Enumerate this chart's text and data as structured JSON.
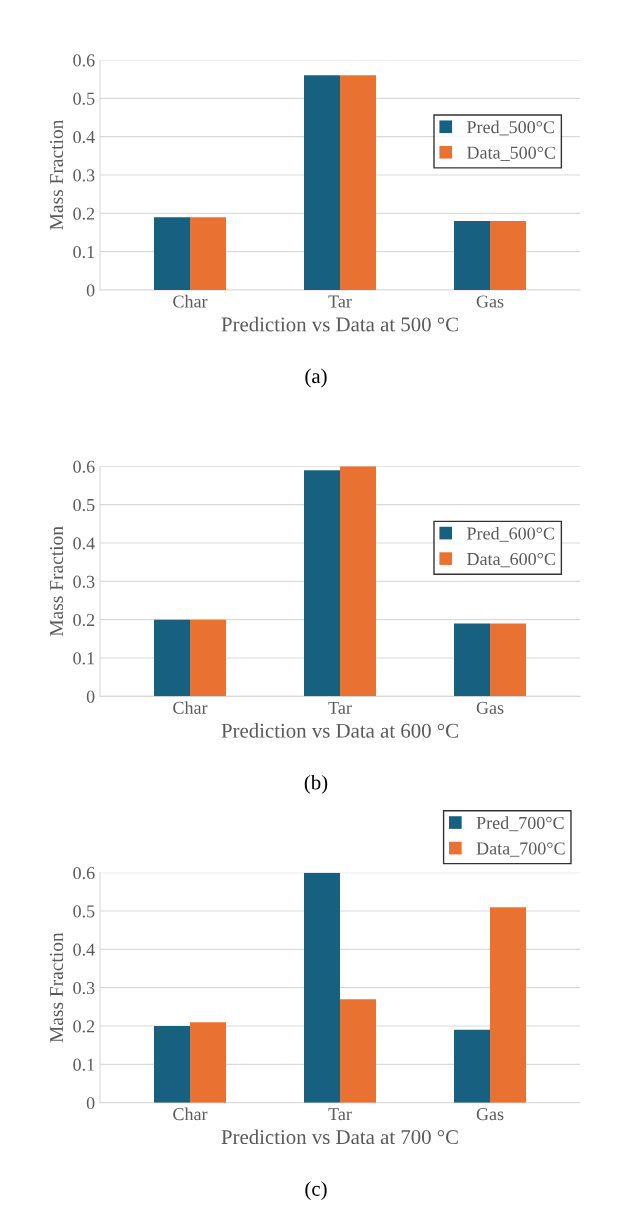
{
  "chart_data": [
    {
      "type": "bar",
      "xlabel": "Prediction vs Data at 500 °C",
      "ylabel": "Mass Fraction",
      "categories": [
        "Char",
        "Tar",
        "Gas"
      ],
      "series": [
        {
          "name": "Pred_500°C",
          "color": "#17607f",
          "values": [
            0.19,
            0.56,
            0.18
          ]
        },
        {
          "name": "Data_500°C",
          "color": "#e97132",
          "values": [
            0.19,
            0.56,
            0.18
          ]
        }
      ],
      "ylim": [
        0,
        0.6
      ],
      "yticks": [
        0,
        0.1,
        0.2,
        0.3,
        0.4,
        0.5,
        0.6
      ],
      "grid": "y",
      "legend": "right",
      "annotations": [
        "(a)"
      ]
    },
    {
      "type": "bar",
      "xlabel": "Prediction vs Data at 600 °C",
      "ylabel": "Mass Fraction",
      "categories": [
        "Char",
        "Tar",
        "Gas"
      ],
      "series": [
        {
          "name": "Pred_600°C",
          "color": "#17607f",
          "values": [
            0.2,
            0.59,
            0.19
          ]
        },
        {
          "name": "Data_600°C",
          "color": "#e97132",
          "values": [
            0.2,
            0.6,
            0.19
          ]
        }
      ],
      "ylim": [
        0,
        0.6
      ],
      "yticks": [
        0,
        0.1,
        0.2,
        0.3,
        0.4,
        0.5,
        0.6
      ],
      "grid": "y",
      "legend": "right",
      "annotations": [
        "(b)"
      ]
    },
    {
      "type": "bar",
      "xlabel": "Prediction vs Data at 700 °C",
      "ylabel": "Mass Fraction",
      "categories": [
        "Char",
        "Tar",
        "Gas"
      ],
      "series": [
        {
          "name": "Pred_700°C",
          "color": "#17607f",
          "values": [
            0.2,
            0.6,
            0.19
          ]
        },
        {
          "name": "Data_700°C",
          "color": "#e97132",
          "values": [
            0.21,
            0.27,
            0.51
          ]
        }
      ],
      "ylim": [
        0,
        0.6
      ],
      "yticks": [
        0,
        0.1,
        0.2,
        0.3,
        0.4,
        0.5,
        0.6
      ],
      "grid": "y",
      "legend": "top right",
      "annotations": [
        "(c)"
      ]
    }
  ]
}
